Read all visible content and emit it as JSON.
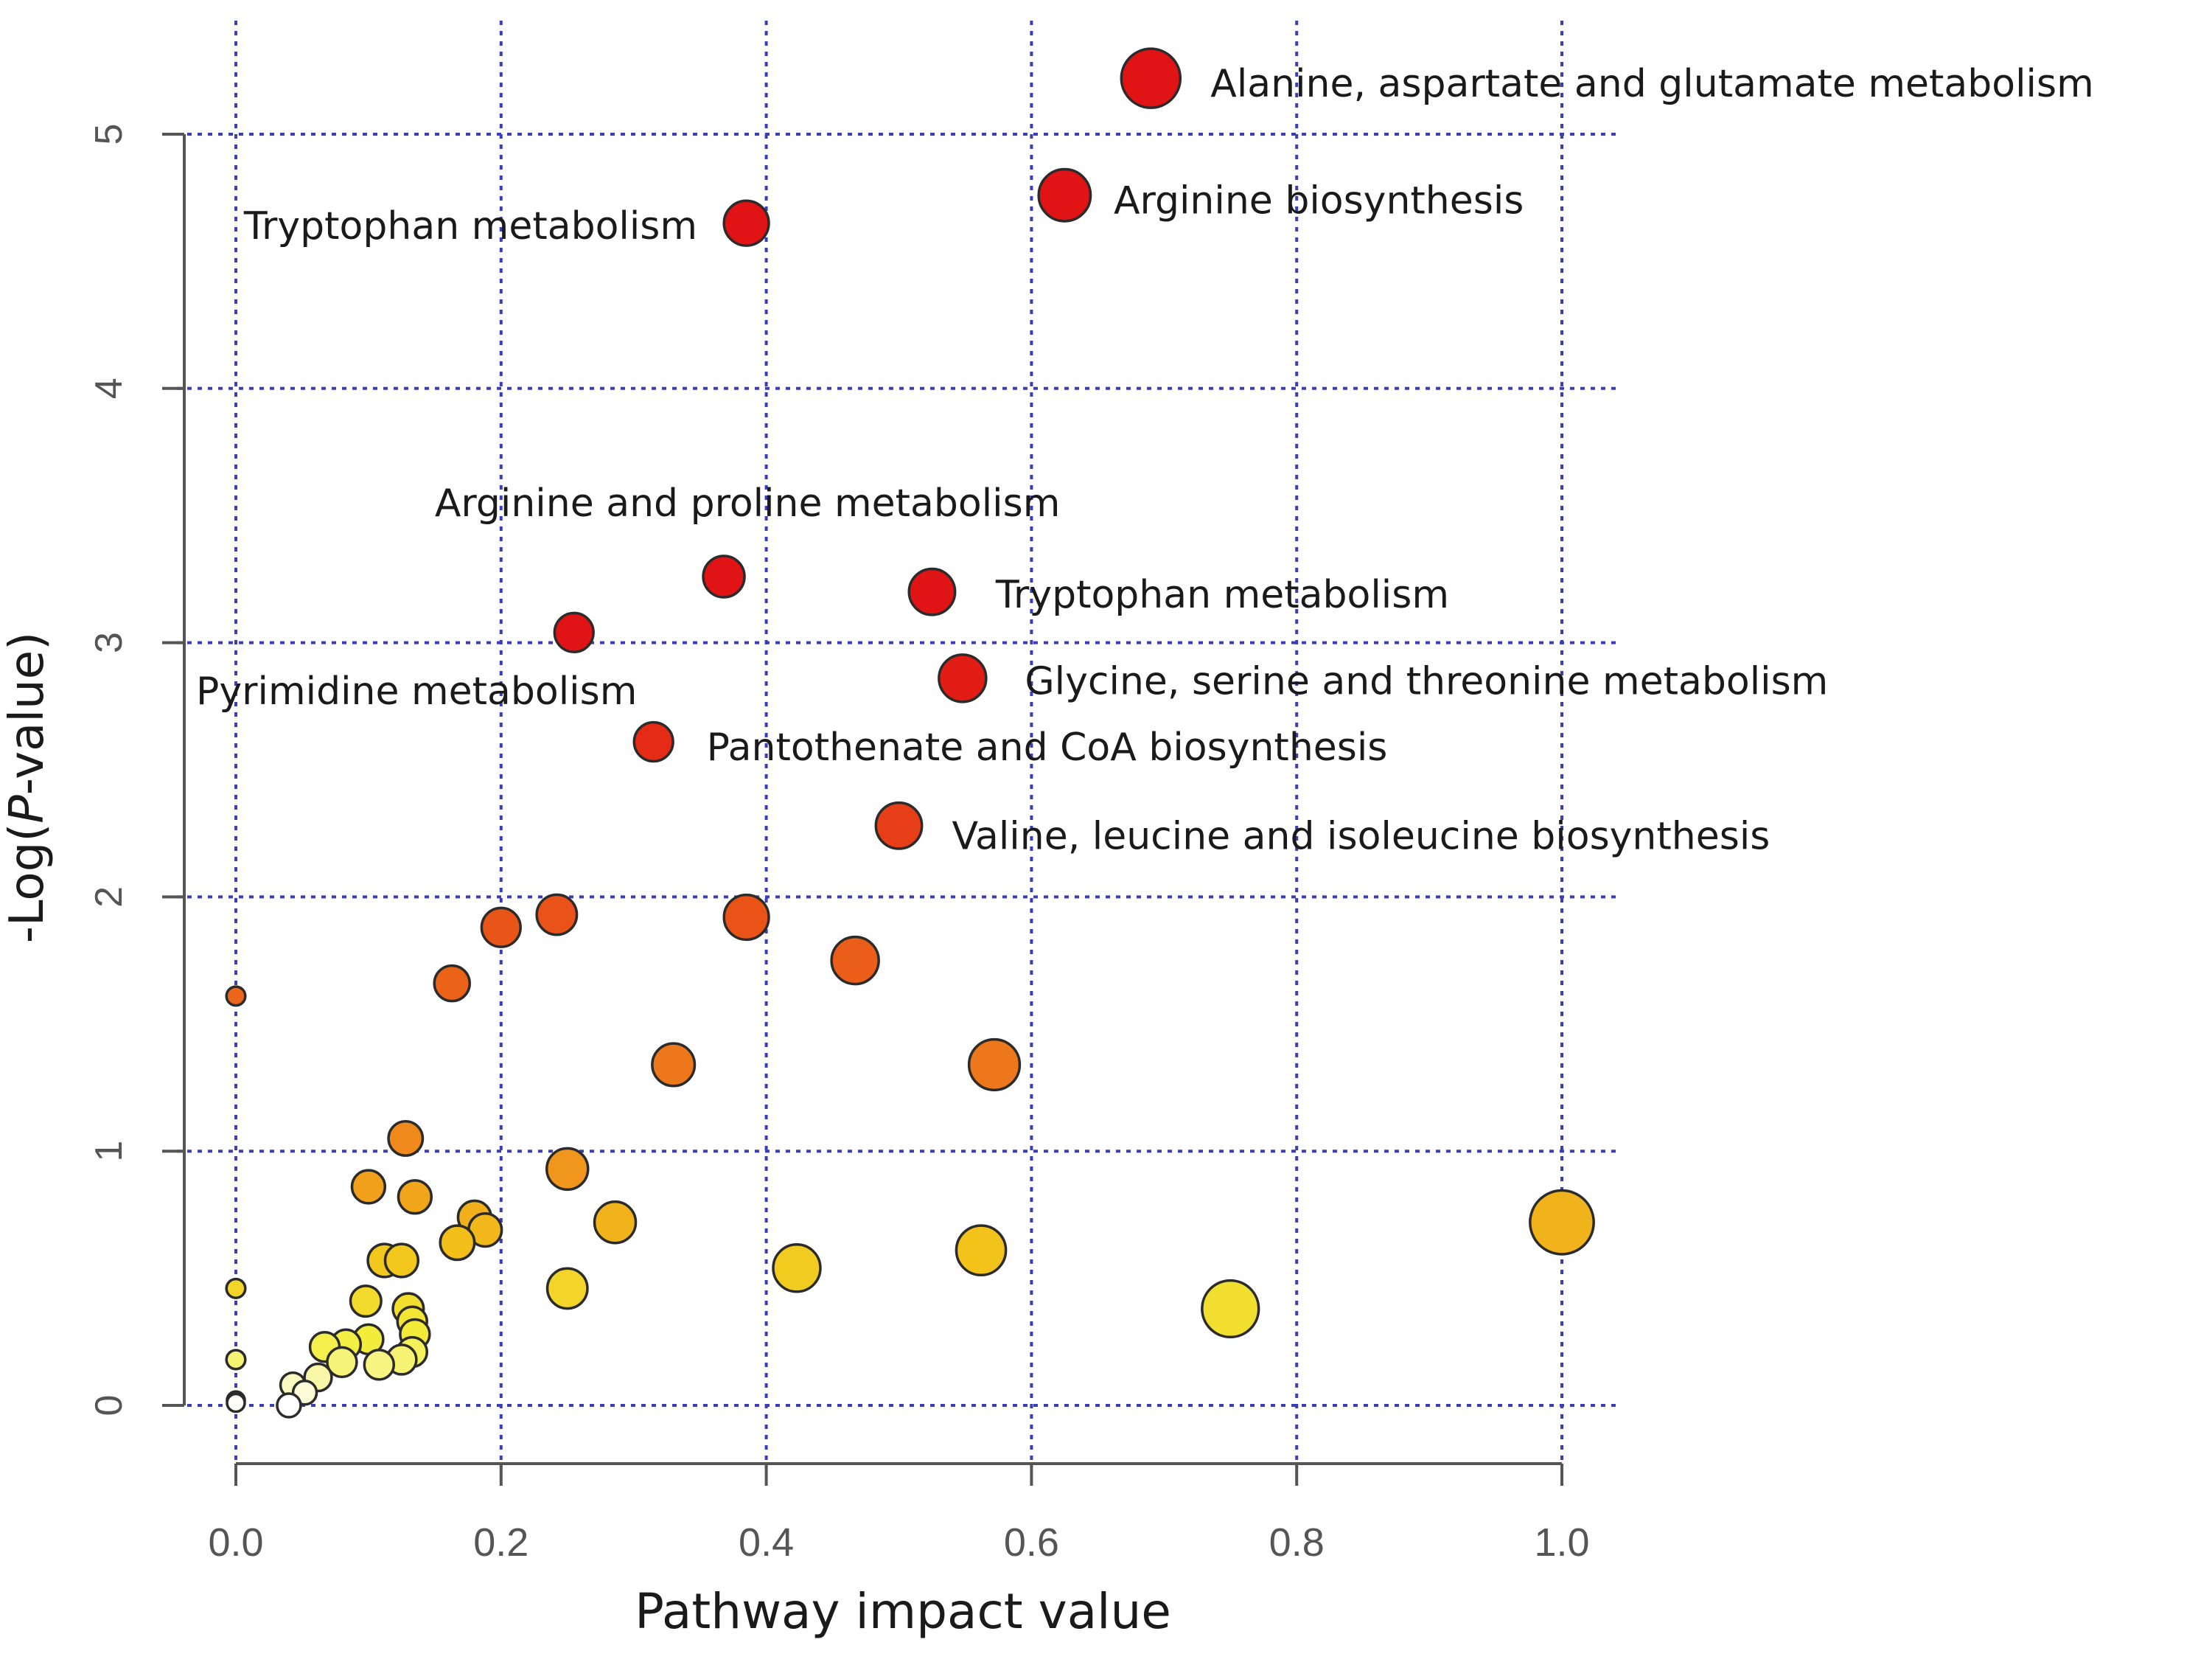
{
  "chart_data": {
    "type": "scatter",
    "xlabel": "Pathway impact value",
    "ylabel": "-Log(P-value)",
    "ylabel_prefix": "-Log(",
    "ylabel_italic": "P",
    "ylabel_suffix": "-value)",
    "xlim": [
      0,
      1.0
    ],
    "ylim": [
      0,
      5
    ],
    "x_ticks": [
      "0.0",
      "0.2",
      "0.4",
      "0.6",
      "0.8",
      "1.0"
    ],
    "x_tick_values": [
      0,
      0.2,
      0.4,
      0.6,
      0.8,
      1.0
    ],
    "y_ticks": [
      "0",
      "1",
      "2",
      "3",
      "4",
      "5"
    ],
    "y_tick_values": [
      0,
      1,
      2,
      3,
      4,
      5
    ],
    "grid": true,
    "grid_color": "#3b3fb5",
    "point_outline": "#2b2b2b",
    "color_scale": [
      "#ffffff",
      "#f2ee3c",
      "#f2c41a",
      "#f08c1c",
      "#e84e18",
      "#e01414"
    ],
    "points": [
      {
        "x": 0.69,
        "y": 5.22,
        "r": 1.0
      },
      {
        "x": 0.625,
        "y": 4.76,
        "r": 0.88
      },
      {
        "x": 0.385,
        "y": 4.65,
        "r": 0.76
      },
      {
        "x": 0.368,
        "y": 3.26,
        "r": 0.7
      },
      {
        "x": 0.525,
        "y": 3.2,
        "r": 0.78
      },
      {
        "x": 0.255,
        "y": 3.04,
        "r": 0.66
      },
      {
        "x": 0.548,
        "y": 2.86,
        "r": 0.8
      },
      {
        "x": 0.315,
        "y": 2.61,
        "r": 0.66
      },
      {
        "x": 0.5,
        "y": 2.28,
        "r": 0.78
      },
      {
        "x": 0.242,
        "y": 1.93,
        "r": 0.68
      },
      {
        "x": 0.385,
        "y": 1.92,
        "r": 0.76
      },
      {
        "x": 0.2,
        "y": 1.88,
        "r": 0.66
      },
      {
        "x": 0.467,
        "y": 1.75,
        "r": 0.8
      },
      {
        "x": 0.163,
        "y": 1.66,
        "r": 0.6
      },
      {
        "x": 0.0,
        "y": 1.61,
        "r": 0.32
      },
      {
        "x": 0.572,
        "y": 1.34,
        "r": 0.86
      },
      {
        "x": 0.33,
        "y": 1.34,
        "r": 0.72
      },
      {
        "x": 0.128,
        "y": 1.05,
        "r": 0.58
      },
      {
        "x": 0.25,
        "y": 0.93,
        "r": 0.7
      },
      {
        "x": 0.1,
        "y": 0.86,
        "r": 0.56
      },
      {
        "x": 0.135,
        "y": 0.82,
        "r": 0.56
      },
      {
        "x": 0.18,
        "y": 0.74,
        "r": 0.56
      },
      {
        "x": 0.286,
        "y": 0.72,
        "r": 0.7
      },
      {
        "x": 1.0,
        "y": 0.72,
        "r": 1.08
      },
      {
        "x": 0.188,
        "y": 0.69,
        "r": 0.56
      },
      {
        "x": 0.167,
        "y": 0.64,
        "r": 0.58
      },
      {
        "x": 0.562,
        "y": 0.61,
        "r": 0.84
      },
      {
        "x": 0.112,
        "y": 0.57,
        "r": 0.56
      },
      {
        "x": 0.125,
        "y": 0.57,
        "r": 0.56
      },
      {
        "x": 0.423,
        "y": 0.54,
        "r": 0.8
      },
      {
        "x": 0.25,
        "y": 0.46,
        "r": 0.68
      },
      {
        "x": 0.0,
        "y": 0.46,
        "r": 0.32
      },
      {
        "x": 0.098,
        "y": 0.41,
        "r": 0.52
      },
      {
        "x": 0.75,
        "y": 0.38,
        "r": 0.96
      },
      {
        "x": 0.13,
        "y": 0.38,
        "r": 0.52
      },
      {
        "x": 0.133,
        "y": 0.33,
        "r": 0.5
      },
      {
        "x": 0.135,
        "y": 0.28,
        "r": 0.5
      },
      {
        "x": 0.1,
        "y": 0.26,
        "r": 0.5
      },
      {
        "x": 0.083,
        "y": 0.24,
        "r": 0.5
      },
      {
        "x": 0.067,
        "y": 0.23,
        "r": 0.5
      },
      {
        "x": 0.133,
        "y": 0.21,
        "r": 0.5
      },
      {
        "x": 0.0,
        "y": 0.18,
        "r": 0.32
      },
      {
        "x": 0.125,
        "y": 0.18,
        "r": 0.5
      },
      {
        "x": 0.08,
        "y": 0.17,
        "r": 0.5
      },
      {
        "x": 0.108,
        "y": 0.16,
        "r": 0.5
      },
      {
        "x": 0.062,
        "y": 0.11,
        "r": 0.46
      },
      {
        "x": 0.043,
        "y": 0.08,
        "r": 0.42
      },
      {
        "x": 0.052,
        "y": 0.05,
        "r": 0.4
      },
      {
        "x": 0.0,
        "y": 0.02,
        "r": 0.3
      },
      {
        "x": 0.0,
        "y": 0.01,
        "r": 0.3
      },
      {
        "x": 0.04,
        "y": 0.0,
        "r": 0.4
      }
    ],
    "annotations": [
      {
        "text": "Alanine, aspartate and glutamate metabolism",
        "x": 0.735,
        "y": 5.2,
        "anchor": "start"
      },
      {
        "text": "Arginine biosynthesis",
        "x": 0.662,
        "y": 4.74,
        "anchor": "start"
      },
      {
        "text": "Tryptophan metabolism",
        "x": 0.348,
        "y": 4.64,
        "anchor": "end"
      },
      {
        "text": "Arginine and proline metabolism",
        "x": 0.15,
        "y": 3.55,
        "anchor": "start"
      },
      {
        "text": "Tryptophan metabolism",
        "x": 0.573,
        "y": 3.19,
        "anchor": "start"
      },
      {
        "text": "Glycine, serine and threonine metabolism",
        "x": 0.595,
        "y": 2.85,
        "anchor": "start"
      },
      {
        "text": "Pyrimidine metabolism",
        "x": -0.03,
        "y": 2.81,
        "anchor": "start"
      },
      {
        "text": "Pantothenate and CoA biosynthesis",
        "x": 0.355,
        "y": 2.59,
        "anchor": "start"
      },
      {
        "text": "Valine, leucine and isoleucine biosynthesis",
        "x": 0.54,
        "y": 2.24,
        "anchor": "start"
      }
    ]
  }
}
